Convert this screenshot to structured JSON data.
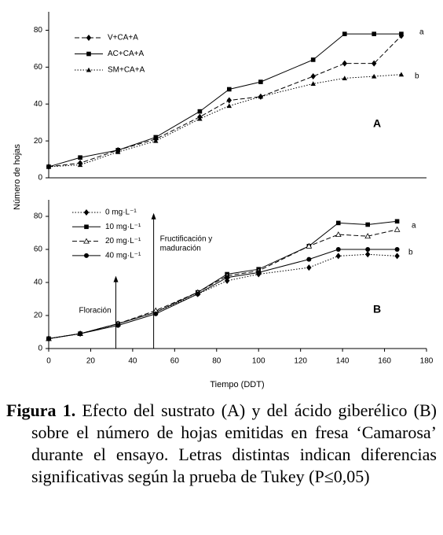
{
  "chart_data": [
    {
      "type": "line",
      "panel_label": "A",
      "letters": [
        "a",
        "b"
      ],
      "y_label": "Número de hojas",
      "xlim": [
        0,
        180
      ],
      "ylim": [
        0,
        90
      ],
      "yticks": [
        0,
        20,
        40,
        60,
        80
      ],
      "legend": "top-left",
      "series": [
        {
          "name": "V+CA+A",
          "color": "#000000",
          "dash": "dashed",
          "marker": "diamond",
          "x": [
            0,
            15,
            33,
            51,
            72,
            86,
            101,
            126,
            141,
            155,
            168
          ],
          "values": [
            6,
            8,
            15,
            21,
            33,
            42,
            44,
            55,
            62,
            62,
            77
          ]
        },
        {
          "name": "AC+CA+A",
          "color": "#000000",
          "dash": "solid",
          "marker": "square",
          "x": [
            0,
            15,
            33,
            51,
            72,
            86,
            101,
            126,
            141,
            155,
            168
          ],
          "values": [
            6,
            11,
            15,
            22,
            36,
            48,
            52,
            64,
            78,
            78,
            78
          ]
        },
        {
          "name": "SM+CA+A",
          "color": "#000000",
          "dash": "dotted",
          "marker": "triangle",
          "x": [
            0,
            15,
            33,
            51,
            72,
            86,
            101,
            126,
            141,
            155,
            168
          ],
          "values": [
            6,
            7,
            14,
            20,
            32,
            39,
            44,
            51,
            54,
            55,
            56
          ]
        }
      ]
    },
    {
      "type": "line",
      "panel_label": "B",
      "letters": [
        "a",
        "b"
      ],
      "x_label": "Tiempo (DDT)",
      "xlim": [
        0,
        180
      ],
      "xticks": [
        0,
        20,
        40,
        60,
        80,
        100,
        120,
        140,
        160,
        180
      ],
      "ylim": [
        0,
        90
      ],
      "yticks": [
        0,
        20,
        40,
        60,
        80
      ],
      "legend": "top-left",
      "annotations": [
        {
          "text": [
            "Floración"
          ],
          "x": 32,
          "y": 44
        },
        {
          "text": [
            "Fructificación y",
            "maduración"
          ],
          "x": 50,
          "y": 82
        }
      ],
      "series": [
        {
          "name": "0 mg·L⁻¹",
          "color": "#000000",
          "dash": "dotted",
          "marker": "diamond",
          "x": [
            0,
            15,
            33,
            51,
            71,
            85,
            100,
            124,
            138,
            152,
            166
          ],
          "values": [
            6,
            9,
            15,
            22,
            33,
            41,
            45,
            49,
            56,
            57,
            56
          ]
        },
        {
          "name": "10 mg·L⁻¹",
          "color": "#000000",
          "dash": "solid",
          "marker": "square",
          "x": [
            0,
            15,
            33,
            51,
            71,
            85,
            100,
            124,
            138,
            152,
            166
          ],
          "values": [
            6,
            9,
            15,
            22,
            34,
            45,
            48,
            62,
            76,
            75,
            77
          ]
        },
        {
          "name": "20 mg·L⁻¹",
          "color": "#000000",
          "dash": "dashed",
          "marker": "triangle-open",
          "x": [
            0,
            15,
            33,
            51,
            71,
            85,
            100,
            124,
            138,
            152,
            166
          ],
          "values": [
            6,
            9,
            15,
            23,
            34,
            44,
            47,
            62,
            69,
            68,
            72
          ]
        },
        {
          "name": "40 mg·L⁻¹",
          "color": "#000000",
          "dash": "solid",
          "marker": "circle",
          "x": [
            0,
            15,
            33,
            51,
            71,
            85,
            100,
            124,
            138,
            152,
            166
          ],
          "values": [
            6,
            9,
            14,
            21,
            33,
            43,
            46,
            54,
            60,
            60,
            60
          ]
        }
      ]
    }
  ],
  "caption": {
    "label": "Figura 1.",
    "text": "Efecto del sustrato (A) y del ácido giberélico (B) sobre el número de hojas emitidas en fresa ‘Camarosa’ durante el ensayo. Letras distintas indican diferencias significativas según la prueba de Tukey (P≤0,05)"
  }
}
